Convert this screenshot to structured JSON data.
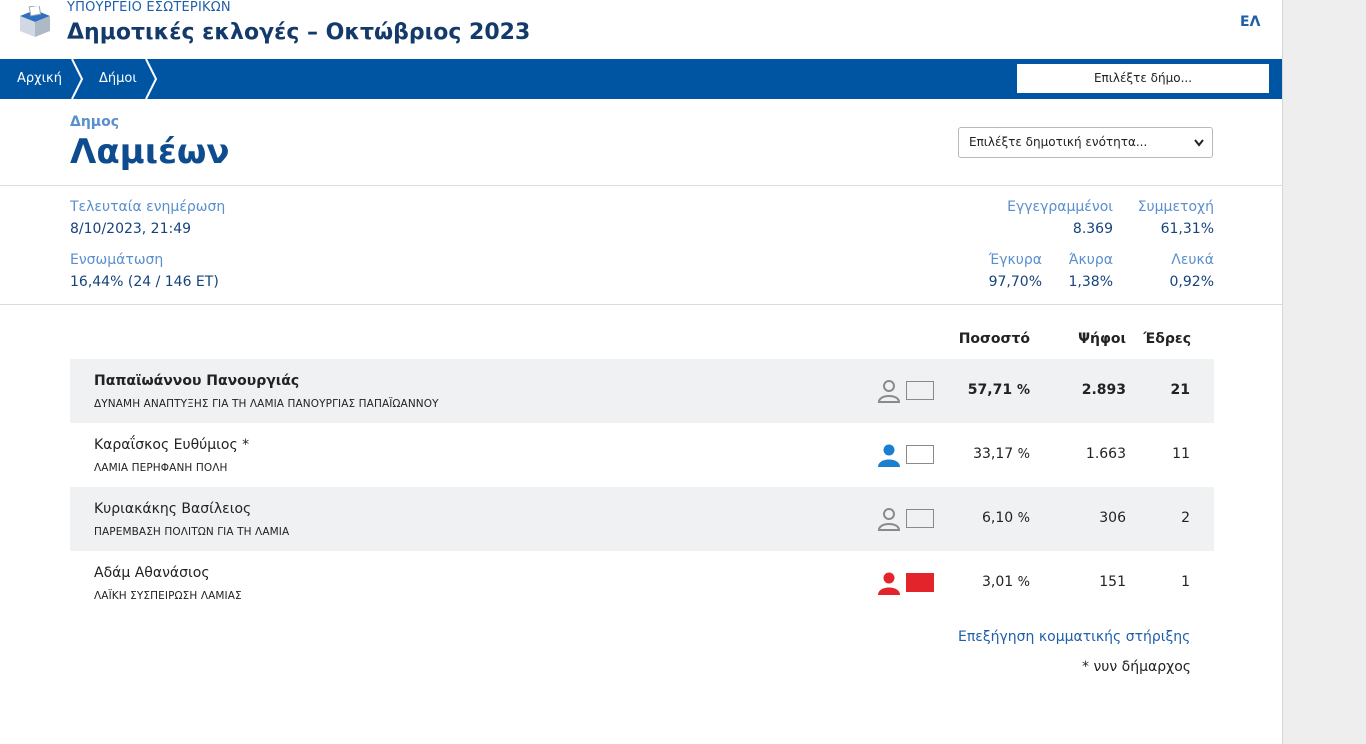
{
  "header": {
    "ministry": "ΥΠΟΥΡΓΕΙΟ ΕΣΩΤΕΡΙΚΩΝ",
    "title": "Δημοτικές εκλογές – Οκτώβριος 2023",
    "lang": "ΕΛ",
    "logo_icon": "ballot-box-icon"
  },
  "nav": {
    "breadcrumbs": [
      "Αρχική",
      "Δήμοι"
    ],
    "municipality_select_placeholder": "Επιλέξτε δήμο..."
  },
  "municipality": {
    "label": "Δημος",
    "name": "Λαμιέων",
    "unit_select_placeholder": "Επιλέξτε δημοτική ενότητα..."
  },
  "stats": {
    "last_update_label": "Τελευταία ενημέρωση",
    "last_update_value": "8/10/2023, 21:49",
    "integration_label": "Ενσωμάτωση",
    "integration_pct": "16,44",
    "integration_counts": "(24 / 146 ΕΤ)",
    "registered_label": "Εγγεγραμμένοι",
    "registered_value": "8.369",
    "turnout_label": "Συμμετοχή",
    "turnout_value": "61,31",
    "valid_label": "Έγκυρα",
    "valid_value": "97,70",
    "invalid_label": "Άκυρα",
    "invalid_value": "1,38",
    "blank_label": "Λευκά",
    "blank_value": "0,92",
    "percent_symbol": "%"
  },
  "results": {
    "columns": {
      "percent": "Ποσοστό",
      "votes": "Ψήφοι",
      "seats": "Έδρες"
    },
    "rows": [
      {
        "candidate": "Παπαϊωάννου Πανουργιάς",
        "party": "ΔΥΝΑΜΗ ΑΝΑΠΤΥΞΗΣ ΓΙΑ ΤΗ ΛΑΜΙΑ ΠΑΝΟΥΡΓΙΑΣ ΠΑΠΑΪΩΑΝΝΟΥ",
        "percent": "57,71",
        "votes": "2.893",
        "seats": "21",
        "icon_color": "#8a8a8a",
        "box_color": "#f0f1f3",
        "box_border": "#8a8a8a"
      },
      {
        "candidate": "Καραΐσκος Ευθύμιος *",
        "party": "ΛΑΜΙΑ ΠΕΡΗΦΑΝΗ ΠΟΛΗ",
        "percent": "33,17",
        "votes": "1.663",
        "seats": "11",
        "icon_color": "#1a7fd0",
        "box_color": "#ffffff",
        "box_border": "#8a8a8a"
      },
      {
        "candidate": "Κυριακάκης Βασίλειος",
        "party": "ΠΑΡΕΜΒΑΣΗ ΠΟΛΙΤΩΝ ΓΙΑ ΤΗ ΛΑΜΙΑ",
        "percent": "6,10",
        "votes": "306",
        "seats": "2",
        "icon_color": "#8a8a8a",
        "box_color": "#f0f1f3",
        "box_border": "#8a8a8a"
      },
      {
        "candidate": "Αδάμ Αθανάσιος",
        "party": "ΛΑΪΚΗ ΣΥΣΠΕΙΡΩΣΗ ΛΑΜΙΑΣ",
        "percent": "3,01",
        "votes": "151",
        "seats": "1",
        "icon_color": "#e3242b",
        "box_color": "#e3242b",
        "box_border": "#e3242b"
      }
    ],
    "percent_symbol": "%",
    "explain_link": "Επεξήγηση κομματικής στήριξης",
    "footnote": "* νυν δήμαρχος"
  },
  "colors": {
    "navbar": "#0055a3",
    "title_blue": "#0e4c8f",
    "label_blue": "#5a8fcf",
    "row_alt": "#f0f1f3"
  }
}
